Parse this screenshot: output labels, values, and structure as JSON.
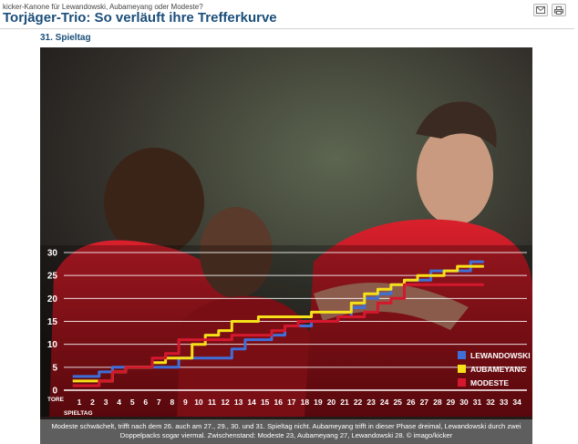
{
  "header": {
    "kicker": "kicker-Kanone für Lewandowski, Aubameyang oder Modeste?",
    "title": "Torjäger-Trio: So verläuft ihre Trefferkurve"
  },
  "toolbar": {
    "mail_icon": "mail-icon",
    "print_icon": "print-icon"
  },
  "infographic": {
    "subtitle": "31. Spieltag",
    "caption": "Modeste schwächelt, trifft nach dem 26. auch am 27., 29., 30. und 31. Spieltag nicht. Aubameyang trifft in dieser Phase dreimal, Lewandowski durch zwei Doppelpacks sogar viermal. Zwischenstand: Modeste 23, Aubameyang 27, Lewandowski 28. © imago/kicker"
  },
  "chart_data": {
    "type": "line",
    "step": true,
    "xlabel": "SPIELTAG",
    "ylabel": "TORE",
    "x": [
      1,
      2,
      3,
      4,
      5,
      6,
      7,
      8,
      9,
      10,
      11,
      12,
      13,
      14,
      15,
      16,
      17,
      18,
      19,
      20,
      21,
      22,
      23,
      24,
      25,
      26,
      27,
      28,
      29,
      30,
      31
    ],
    "x_ticks": [
      1,
      2,
      3,
      4,
      5,
      6,
      7,
      8,
      9,
      10,
      11,
      12,
      13,
      14,
      15,
      16,
      17,
      18,
      19,
      20,
      21,
      22,
      23,
      24,
      25,
      26,
      27,
      28,
      29,
      30,
      31,
      32,
      33,
      34
    ],
    "y_ticks": [
      0,
      5,
      10,
      15,
      20,
      25,
      30
    ],
    "ylim": [
      0,
      30
    ],
    "xlim": [
      1,
      34
    ],
    "grid": true,
    "legend_position": "bottom-right",
    "series": [
      {
        "name": "LEWANDOWSKI",
        "color": "#3f6fd8",
        "values": [
          3,
          3,
          4,
          5,
          5,
          5,
          5,
          5,
          7,
          7,
          7,
          7,
          9,
          11,
          11,
          12,
          14,
          14,
          15,
          15,
          16,
          18,
          20,
          21,
          23,
          24,
          24,
          26,
          26,
          26,
          28
        ]
      },
      {
        "name": "AUBAMEYANG",
        "color": "#f6e01a",
        "values": [
          2,
          2,
          2,
          4,
          5,
          5,
          6,
          7,
          7,
          10,
          12,
          13,
          15,
          15,
          16,
          16,
          16,
          16,
          17,
          17,
          17,
          19,
          21,
          22,
          23,
          24,
          25,
          25,
          26,
          27,
          27
        ]
      },
      {
        "name": "MODESTE",
        "color": "#d4182d",
        "values": [
          1,
          1,
          2,
          4,
          5,
          5,
          7,
          8,
          11,
          11,
          11,
          11,
          12,
          12,
          12,
          13,
          14,
          15,
          15,
          15,
          16,
          16,
          17,
          19,
          20,
          23,
          23,
          23,
          23,
          23,
          23
        ]
      }
    ]
  }
}
